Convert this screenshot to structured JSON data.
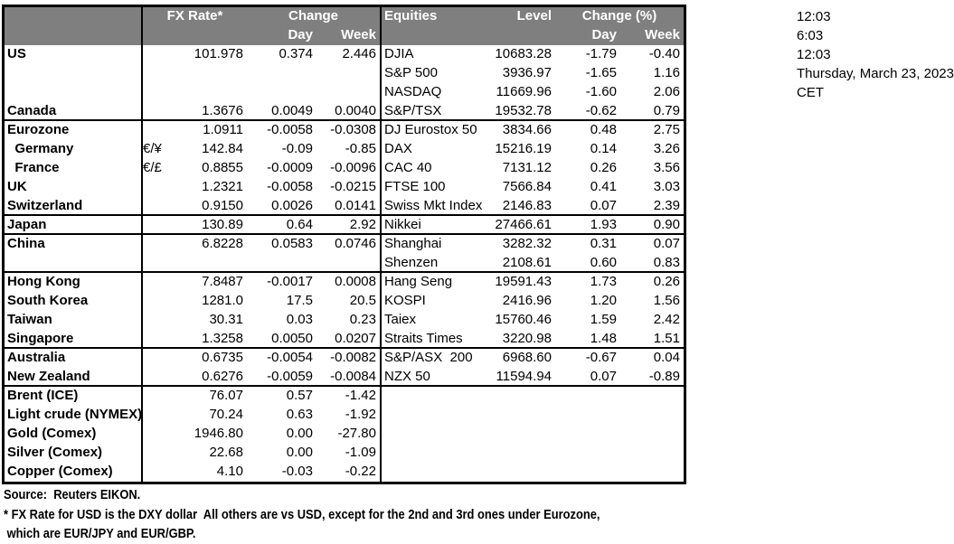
{
  "fx_header": {
    "rate_label": "FX Rate*",
    "change_label": "Change",
    "day_label": "Day",
    "week_label": "Week"
  },
  "eq_header": {
    "name_label": "Equities",
    "level_label": "Level",
    "change_label": "Change (%)",
    "day_label": "Day",
    "week_label": "Week"
  },
  "fx_rows": [
    {
      "name": "US",
      "sym": "",
      "rate": "101.978",
      "day": "0.374",
      "week": "2.446"
    },
    {
      "name": "",
      "sym": "",
      "rate": "",
      "day": "",
      "week": ""
    },
    {
      "name": "",
      "sym": "",
      "rate": "",
      "day": "",
      "week": ""
    },
    {
      "name": "Canada",
      "sym": "",
      "rate": "1.3676",
      "day": "0.0049",
      "week": "0.0040"
    },
    {
      "name": "Eurozone",
      "sym": "",
      "rate": "1.0911",
      "day": "-0.0058",
      "week": "-0.0308"
    },
    {
      "name": "  Germany",
      "sym": "€/¥",
      "rate": "142.84",
      "day": "-0.09",
      "week": "-0.85"
    },
    {
      "name": "  France",
      "sym": "€/£",
      "rate": "0.8855",
      "day": "-0.0009",
      "week": "-0.0096"
    },
    {
      "name": "UK",
      "sym": "",
      "rate": "1.2321",
      "day": "-0.0058",
      "week": "-0.0215"
    },
    {
      "name": "Switzerland",
      "sym": "",
      "rate": "0.9150",
      "day": "0.0026",
      "week": "0.0141"
    },
    {
      "name": "Japan",
      "sym": "",
      "rate": "130.89",
      "day": "0.64",
      "week": "2.92"
    },
    {
      "name": "China",
      "sym": "",
      "rate": "6.8228",
      "day": "0.0583",
      "week": "0.0746"
    },
    {
      "name": "",
      "sym": "",
      "rate": "",
      "day": "",
      "week": ""
    },
    {
      "name": "Hong Kong",
      "sym": "",
      "rate": "7.8487",
      "day": "-0.0017",
      "week": "0.0008"
    },
    {
      "name": "South Korea",
      "sym": "",
      "rate": "1281.0",
      "day": "17.5",
      "week": "20.5"
    },
    {
      "name": "Taiwan",
      "sym": "",
      "rate": "30.31",
      "day": "0.03",
      "week": "0.23"
    },
    {
      "name": "Singapore",
      "sym": "",
      "rate": "1.3258",
      "day": "0.0050",
      "week": "0.0207"
    },
    {
      "name": "Australia",
      "sym": "",
      "rate": "0.6735",
      "day": "-0.0054",
      "week": "-0.0082"
    },
    {
      "name": "New Zealand",
      "sym": "",
      "rate": "0.6276",
      "day": "-0.0059",
      "week": "-0.0084"
    },
    {
      "name": "Brent (ICE)",
      "sym": "",
      "rate": "76.07",
      "day": "0.57",
      "week": "-1.42"
    },
    {
      "name": "Light crude (NYMEX)",
      "sym": "",
      "rate": "70.24",
      "day": "0.63",
      "week": "-1.92"
    },
    {
      "name": "Gold (Comex)",
      "sym": "",
      "rate": "1946.80",
      "day": "0.00",
      "week": "-27.80"
    },
    {
      "name": "Silver (Comex)",
      "sym": "",
      "rate": "22.68",
      "day": "0.00",
      "week": "-1.09"
    },
    {
      "name": "Copper (Comex)",
      "sym": "",
      "rate": "4.10",
      "day": "-0.03",
      "week": "-0.22"
    }
  ],
  "eq_rows": [
    {
      "name": "DJIA",
      "level": "10683.28",
      "day": "-1.79",
      "week": "-0.40"
    },
    {
      "name": "S&P 500",
      "level": "3936.97",
      "day": "-1.65",
      "week": "1.16"
    },
    {
      "name": "NASDAQ",
      "level": "11669.96",
      "day": "-1.60",
      "week": "2.06"
    },
    {
      "name": "S&P/TSX",
      "level": "19532.78",
      "day": "-0.62",
      "week": "0.79"
    },
    {
      "name": "DJ Eurostox 50",
      "level": "3834.66",
      "day": "0.48",
      "week": "2.75"
    },
    {
      "name": "DAX",
      "level": "15216.19",
      "day": "0.14",
      "week": "3.26"
    },
    {
      "name": "CAC 40",
      "level": "7131.12",
      "day": "0.26",
      "week": "3.56"
    },
    {
      "name": "FTSE 100",
      "level": "7566.84",
      "day": "0.41",
      "week": "3.03"
    },
    {
      "name": "Swiss Mkt Index",
      "level": "2146.83",
      "day": "0.07",
      "week": "2.39"
    },
    {
      "name": "Nikkei",
      "level": "27466.61",
      "day": "1.93",
      "week": "0.90"
    },
    {
      "name": "Shanghai",
      "level": "3282.32",
      "day": "0.31",
      "week": "0.07"
    },
    {
      "name": "Shenzen",
      "level": "2108.61",
      "day": "0.60",
      "week": "0.83"
    },
    {
      "name": "Hang Seng",
      "level": "19591.43",
      "day": "1.73",
      "week": "0.26"
    },
    {
      "name": "KOSPI",
      "level": "2416.96",
      "day": "1.20",
      "week": "1.56"
    },
    {
      "name": "Taiex",
      "level": "15760.46",
      "day": "1.59",
      "week": "2.42"
    },
    {
      "name": "Straits Times",
      "level": "3220.98",
      "day": "1.48",
      "week": "1.51"
    },
    {
      "name": "S&P/ASX  200",
      "level": "6968.60",
      "day": "-0.67",
      "week": "0.04"
    },
    {
      "name": "NZX 50",
      "level": "11594.94",
      "day": "0.07",
      "week": "-0.89"
    }
  ],
  "times": [
    "12:03",
    "6:03",
    "12:03",
    "Thursday, March 23, 2023",
    "CET"
  ],
  "footer": {
    "source": "Source:  Reuters EIKON.",
    "note1": "* FX Rate for USD is the DXY dollar  All others are vs USD, except for the 2nd and 3rd ones under Eurozone,",
    "note2": " which are EUR/JPY and EUR/GBP."
  },
  "colors": {
    "header_bg": "#7f7f7f",
    "header_text": "#ffffff",
    "border": "#000000",
    "text": "#000000"
  }
}
